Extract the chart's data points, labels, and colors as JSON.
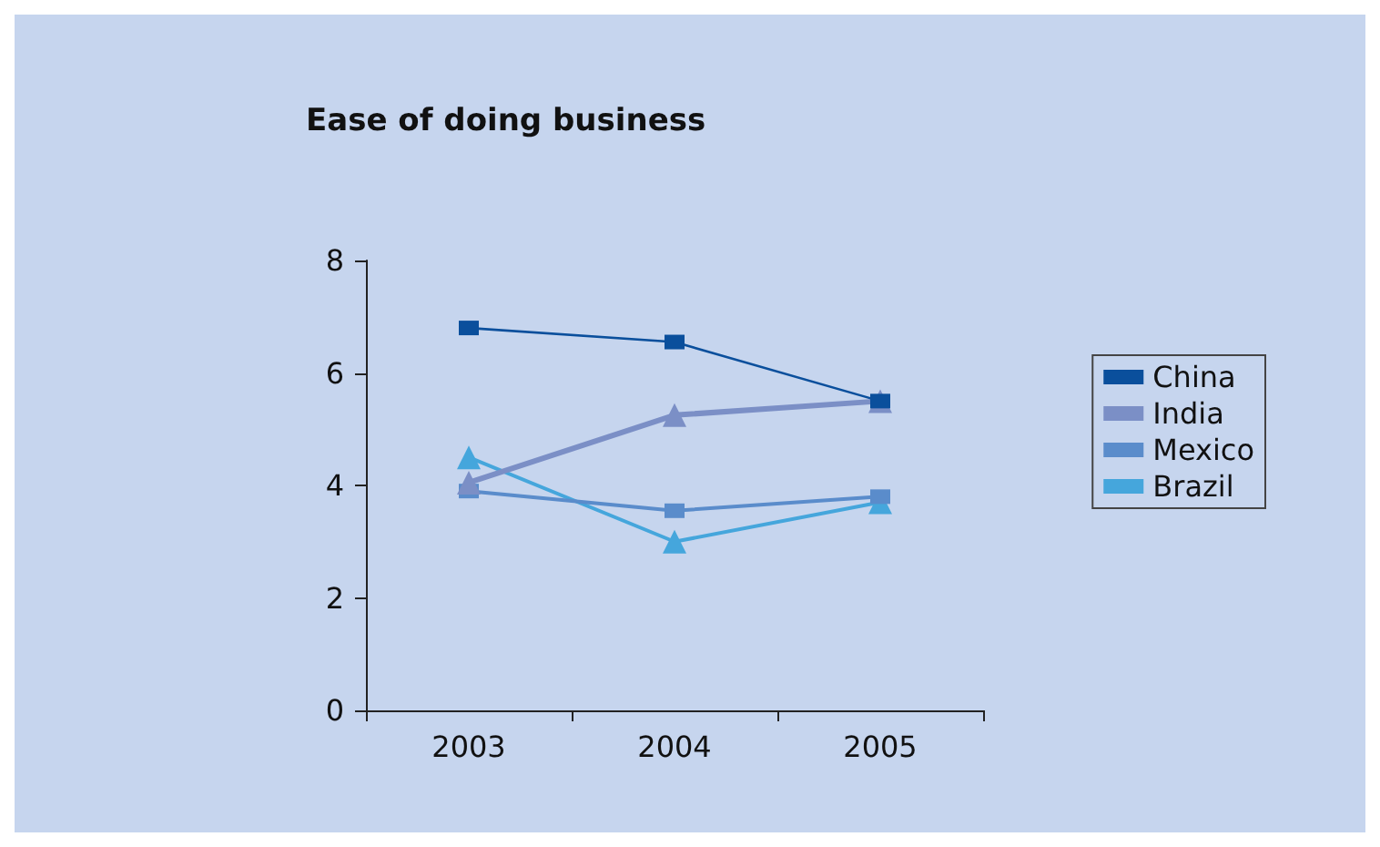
{
  "chart_data": {
    "type": "line",
    "title": "Ease of doing business",
    "categories": [
      "2003",
      "2004",
      "2005"
    ],
    "series": [
      {
        "name": "China",
        "color": "#0a4f9c",
        "marker": "square",
        "values": [
          6.8,
          6.55,
          5.5
        ]
      },
      {
        "name": "India",
        "color": "#7b8fc6",
        "marker": "triangle",
        "values": [
          4.05,
          5.25,
          5.5
        ]
      },
      {
        "name": "Mexico",
        "color": "#5a8ccb",
        "marker": "square",
        "values": [
          3.9,
          3.55,
          3.8
        ]
      },
      {
        "name": "Brazil",
        "color": "#45a6dc",
        "marker": "triangle",
        "values": [
          4.5,
          3.0,
          3.7
        ]
      }
    ],
    "ylim": [
      0,
      8
    ],
    "yticks": [
      0,
      2,
      4,
      6,
      8
    ],
    "grid": false,
    "legend": "right"
  }
}
